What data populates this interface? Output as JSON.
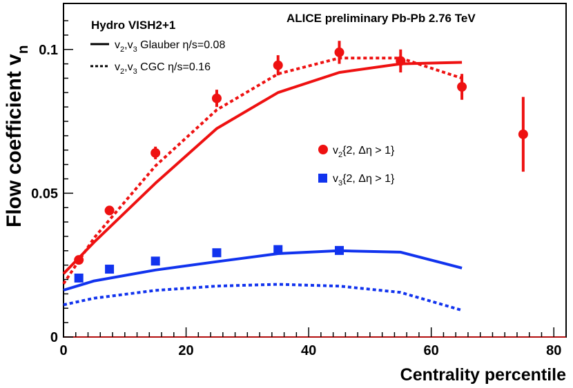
{
  "chart_data": {
    "type": "scatter",
    "title": "ALICE preliminary Pb-Pb 2.76 TeV",
    "xlabel": "Centrality percentile",
    "ylabel_main": "Flow coefficient v",
    "ylabel_sub": "n",
    "xlim": [
      0,
      82
    ],
    "ylim": [
      0,
      0.116
    ],
    "x_ticks": [
      0,
      20,
      40,
      60,
      80
    ],
    "y_ticks": [
      0,
      0.05,
      0.1
    ],
    "x_tick_labels": [
      "0",
      "20",
      "40",
      "60",
      "80"
    ],
    "y_tick_labels": [
      "0",
      "0.05",
      "0.1"
    ],
    "legend_header": "Hydro VISH2+1",
    "legend_lines": [
      {
        "style": "solid",
        "pre": "v",
        "s1": "2",
        "mid": ",v",
        "s2": "3",
        "post": " Glauber η/s=0.08"
      },
      {
        "style": "dashed",
        "pre": "v",
        "s1": "2",
        "mid": ",v",
        "s2": "3",
        "post": " CGC η/s=0.16"
      }
    ],
    "legend_markers": [
      {
        "marker": "circle",
        "color": "#ee1111",
        "pre": "v",
        "sub": "2",
        "post": "{2, Δη > 1}"
      },
      {
        "marker": "square",
        "color": "#1133ee",
        "pre": "v",
        "sub": "3",
        "post": "{2, Δη > 1}"
      }
    ],
    "series": [
      {
        "name": "v2{2, Δη > 1}",
        "marker": "circle",
        "color": "#ee1111",
        "x": [
          2.5,
          7.5,
          15,
          25,
          35,
          45,
          55,
          65,
          75
        ],
        "y": [
          0.0268,
          0.044,
          0.064,
          0.083,
          0.0945,
          0.099,
          0.096,
          0.087,
          0.0705
        ],
        "err": [
          0.001,
          0.0016,
          0.0022,
          0.003,
          0.0035,
          0.004,
          0.004,
          0.0045,
          0.013
        ]
      },
      {
        "name": "v3{2, Δη > 1}",
        "marker": "square",
        "color": "#1133ee",
        "x": [
          2.5,
          7.5,
          15,
          25,
          35,
          45
        ],
        "y": [
          0.0205,
          0.0236,
          0.0264,
          0.0293,
          0.0304,
          0.0301
        ],
        "err": [
          0.0004,
          0.0004,
          0.0004,
          0.0005,
          0.0005,
          0.0006
        ]
      }
    ],
    "curves": [
      {
        "style": "solid",
        "color": "#ee1111",
        "x": [
          0,
          5,
          15,
          25,
          35,
          45,
          55,
          65
        ],
        "y": [
          0.022,
          0.033,
          0.0535,
          0.0725,
          0.085,
          0.092,
          0.095,
          0.0955
        ]
      },
      {
        "style": "dashed",
        "color": "#ee1111",
        "x": [
          0,
          5,
          15,
          25,
          35,
          45,
          55,
          65
        ],
        "y": [
          0.0185,
          0.0345,
          0.0595,
          0.079,
          0.0915,
          0.097,
          0.097,
          0.09
        ]
      },
      {
        "style": "solid",
        "color": "#1133ee",
        "x": [
          0,
          5,
          15,
          25,
          35,
          45,
          55,
          65
        ],
        "y": [
          0.0163,
          0.0195,
          0.0233,
          0.0262,
          0.029,
          0.03,
          0.0295,
          0.024
        ]
      },
      {
        "style": "dashed",
        "color": "#1133ee",
        "x": [
          0,
          5,
          15,
          25,
          35,
          45,
          55,
          65
        ],
        "y": [
          0.0112,
          0.0135,
          0.0162,
          0.0177,
          0.0183,
          0.0177,
          0.0155,
          0.0093
        ]
      }
    ],
    "grid": false
  }
}
